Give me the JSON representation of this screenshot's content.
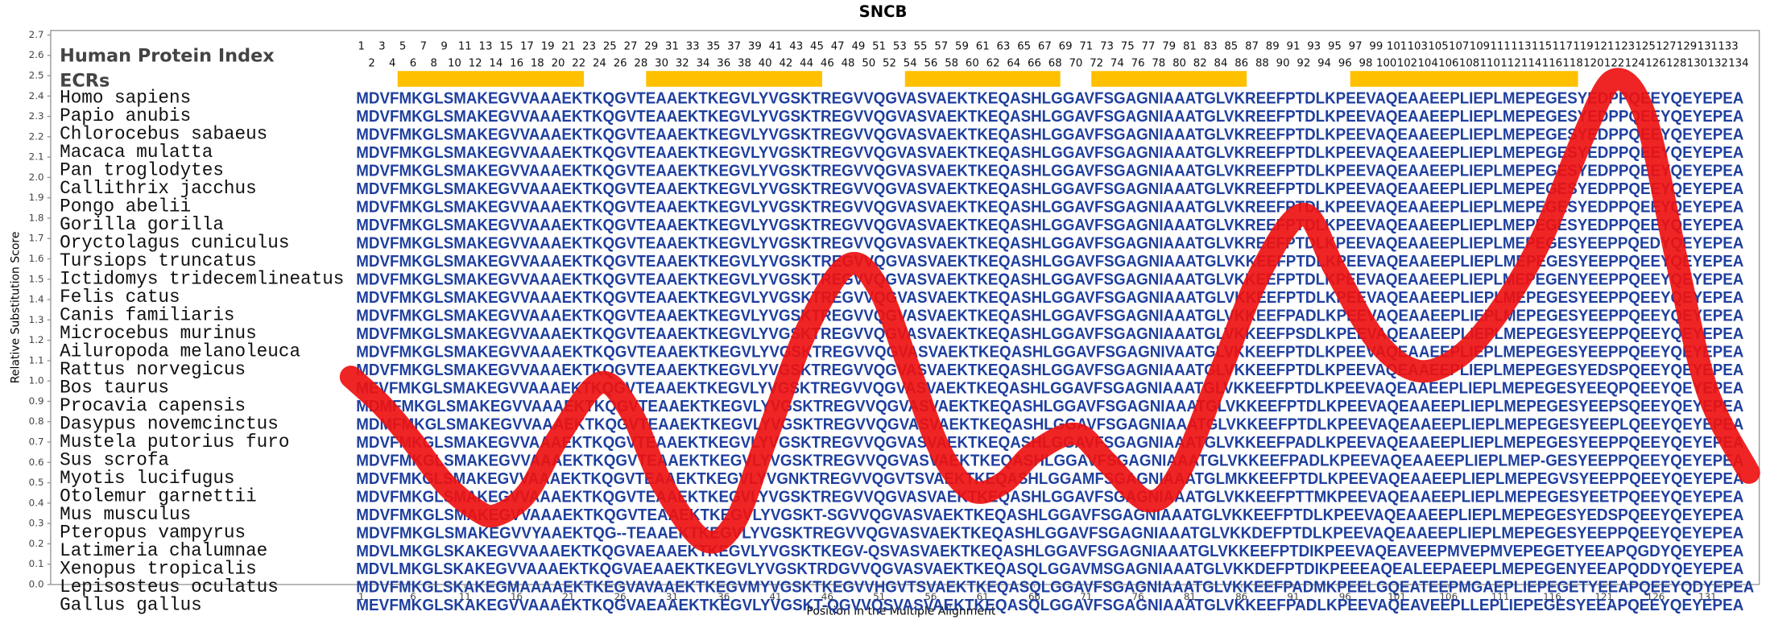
{
  "chart_data": {
    "type": "line",
    "title": "SNCB",
    "y_label": "Relative Substitution Score",
    "x_label": "Position in the Multiple Alignment",
    "header_label": "Human Protein Index",
    "ecr_label": "ECRs",
    "xlim": [
      -29,
      136
    ],
    "ylim": [
      0,
      2.7
    ],
    "xticks": [
      1,
      6,
      11,
      16,
      21,
      26,
      31,
      36,
      41,
      46,
      51,
      56,
      61,
      66,
      71,
      76,
      81,
      86,
      91,
      96,
      101,
      106,
      111,
      116,
      121,
      126,
      131
    ],
    "yticks": [
      {
        "value": 0,
        "label": "0.0"
      },
      0.1,
      0.2,
      0.3,
      0.4,
      0.5,
      0.6,
      0.7,
      0.8,
      0.9,
      {
        "value": 1,
        "label": "1.0"
      },
      1.1,
      1.2,
      1.3,
      1.4,
      1.5,
      1.6,
      1.7,
      1.8,
      1.9,
      {
        "value": 2,
        "label": "2.0"
      },
      2.1,
      2.2,
      2.3,
      2.4,
      2.5,
      2.6,
      2.7
    ],
    "positions": [
      1,
      2,
      3,
      4,
      5,
      6,
      7,
      8,
      9,
      10,
      11,
      12,
      13,
      14,
      15,
      16,
      17,
      18,
      19,
      20,
      21,
      22,
      23,
      24,
      25,
      26,
      27,
      28,
      29,
      30,
      31,
      32,
      33,
      34,
      35,
      36,
      37,
      38,
      39,
      40,
      41,
      42,
      43,
      44,
      45,
      46,
      47,
      48,
      49,
      50,
      51,
      52,
      53,
      54,
      55,
      56,
      57,
      58,
      59,
      60,
      61,
      62,
      63,
      64,
      65,
      66,
      67,
      68,
      69,
      70,
      71,
      72,
      73,
      74,
      75,
      76,
      77,
      78,
      79,
      80,
      81,
      82,
      83,
      84,
      85,
      86,
      87,
      88,
      89,
      90,
      91,
      92,
      93,
      94,
      95,
      96,
      97,
      98,
      99,
      100,
      101,
      102,
      103,
      104,
      105,
      106,
      107,
      108,
      109,
      110,
      111,
      112,
      113,
      114,
      115,
      116,
      117,
      118,
      119,
      120,
      121,
      122,
      123,
      124,
      125,
      126,
      127,
      128,
      129,
      130,
      131,
      132,
      133,
      134
    ],
    "ecrs": [
      [
        5,
        22
      ],
      [
        29,
        45
      ],
      [
        54,
        68
      ],
      [
        72,
        86
      ],
      [
        97,
        118
      ]
    ],
    "ecr_color": "#ffc000",
    "series": [
      {
        "color": "#ee1111",
        "x": [
          0,
          3,
          6,
          9,
          12,
          14,
          17,
          20,
          24,
          27,
          30,
          34,
          37,
          40,
          44,
          48,
          51,
          54,
          57,
          60,
          63,
          66,
          70,
          73,
          77,
          80,
          84,
          88,
          92,
          95,
          99,
          103,
          107,
          111,
          115,
          119,
          122,
          125,
          128,
          131,
          135
        ],
        "values": [
          1.02,
          0.88,
          0.7,
          0.5,
          0.37,
          0.34,
          0.45,
          0.72,
          0.99,
          0.85,
          0.5,
          0.22,
          0.3,
          0.7,
          1.25,
          1.57,
          1.45,
          1.05,
          0.65,
          0.46,
          0.5,
          0.65,
          0.74,
          0.6,
          0.41,
          0.55,
          1.05,
          1.55,
          1.82,
          1.55,
          1.2,
          1.05,
          1.12,
          1.35,
          1.7,
          2.2,
          2.48,
          2.3,
          1.6,
          0.95,
          0.55
        ]
      }
    ],
    "alignment": [
      {
        "name": "Homo sapiens",
        "sequence": "MDVFMKGLSMAKEGVVAAAEKTKQGVTEAAEKTKEGVLYVGSKTREGVVQGVASVAEKTKEQASHLGGAVFSGAGNIAAATGLVKREEFPTDLKPEEVAQEAAEEPLIEPLMEPEGESYEDPPQEEYQEYEPEA"
      },
      {
        "name": "Papio anubis",
        "sequence": "MDVFMKGLSMAKEGVVAAAEKTKQGVTEAAEKTKEGVLYVGSKTREGVVQGVASVAEKTKEQASHLGGAVFSGAGNIAAATGLVKREEFPTDLKPEEVAQEAAEEPLIEPLMEPEGESYEDPPQEEYQEYEPEA"
      },
      {
        "name": "Chlorocebus sabaeus",
        "sequence": "MDVFMKGLSMAKEGVVAAAEKTKQGVTEAAEKTKEGVLYVGSKTREGVVQGVASVAEKTKEQASHLGGAVFSGAGNIAAATGLVKREEFPTDLKPEEVAQEAAEEPLIEPLMEPEGESYEDPPQEEYQEYEPEA"
      },
      {
        "name": "Macaca mulatta",
        "sequence": "MDVFMKGLSMAKEGVVAAAEKTKQGVTEAAEKTKEGVLYVGSKTREGVVQGVASVAEKTKEQASHLGGAVFSGAGNIAAATGLVKREEFPTDLKPEEVAQEAAEEPLIEPLMEPEGESYEDPPQEEYQEYEPEA"
      },
      {
        "name": "Pan troglodytes",
        "sequence": "MDVFMKGLSMAKEGVVAAAEKTKQGVTEAAEKTKEGVLYVGSKTREGVVQGVASVAEKTKEQASHLGGAVFSGAGNIAAATGLVKREEFPTDLKPEEVAQEAAEEPLIEPLMEPEGESYEDPPQEEYQEYEPEA"
      },
      {
        "name": "Callithrix jacchus",
        "sequence": "MDVFMKGLSMAKEGVVAAAEKTKQGVTEAAEKTKEGVLYVGSKTREGVVQGVASVAEKTKEQASHLGGAVFSGAGNIAAATGLVKREEFPTDLKPEEVAQEAAEEPLIEPLMEPEGESYEDPPQEEYQEYEPEA"
      },
      {
        "name": "Pongo abelii",
        "sequence": "MDVFMKGLSMAKEGVVAAAEKTKQGVTEAAEKTKEGVLYVGSKTREGVVQGVASVAEKTKEQASHLGGAVFSGAGNIAAATGLVKREEFPTDLKPEEVAQEAAEEPLIEPLMEPEGESYEDPPQEEYQEYEPEA"
      },
      {
        "name": "Gorilla gorilla",
        "sequence": "MDVFMKGLSMAKEGVVAAAEKTKQGVTEAAEKTKEGVLYVGSKTREGVVQGVASVAEKTKEQASHLGGAVFSGAGNIAAATGLVKREEFPTDLKPEEVAQEAAEEPLIEPLMEPEGESYEDPPQEEYQEYEPEA"
      },
      {
        "name": "Oryctolagus cuniculus",
        "sequence": "MDVFMKGLSMAKEGVVAAAEKTKQGVTEAAEKTKEGVLYVGSKTREGVVQGVASVAEKTKEQASHLGGAVFSGAGNIAAATGLVKREEFPTDLKPEEVAQEAAEEPLIEPLMEPEGESYEEPPQEDYQEYEPEA"
      },
      {
        "name": "Tursiops truncatus",
        "sequence": "MDVFMKGLSMAKEGVVAAAEKTKQGVTEAAEKTKEGVLYVGSKTREGVVQGVASVAEKTKEQASHLGGAVFSGAGNIAAATGLVKKEEFPTDLKPEEVAQEAAEEPLIEPLMEPEGESYEEPPQEEYQEYEPEA"
      },
      {
        "name": "Ictidomys tridecemlineatus",
        "sequence": "MDVFMKGLSMAKEGVVAAAEKTKQGVTEAAEKTKEGVLYVGSKTREGVVQGVASVAEKTKEQASHLGGAVFSGAGNIAAATGLVKKEEFPTDLKPEEVAQEAAEEPLIEPLMEPEGENYEEPPQEEYQEYEPEA"
      },
      {
        "name": "Felis catus",
        "sequence": "MDVFMKGLSMAKEGVVAAAEKTKQGVTEAAEKTKEGVLYVGSKTREGVVQGVASVAEKTKEQASHLGGAVFSGAGNIAAATGLVKKEEFPTDLKPEEVAQEAAEEPLIEPLMEPEGESYEEPPQEEYQEYEPEA"
      },
      {
        "name": "Canis familiaris",
        "sequence": "MDVFMKGLSMAKEGVVAAAEKTKQGVTEAAEKTKEGVLYVGSKTREGVVQGVASVAEKTKEQASHLGGAVFSGAGNIAAATGLVKKEEFPADLKPEEVAQEAAEEPLIEPLMEPEGESYEEPPQEEYQEYEPEA"
      },
      {
        "name": "Microcebus murinus",
        "sequence": "MDVFMKGLSMAKEGVVAAAEKTKQGVTEAAEKTKEGVLYVGSKTREGVVQGVASVAEKTKEQASHLGGAVFSGAGNIAAATGLVKKEEFPSDLKPEEVAQEAAEEPLIEPLMEPEGESYEEPPQEEYQEYEPEA"
      },
      {
        "name": "Ailuropoda melanoleuca",
        "sequence": "MDVFMKGLSMAKEGVVAAAEKTKQGVTEAAEKTKEGVLYVGSKTREGVVQGVASVAEKTKEQASHLGGAVFSGAGNIVAATGLVKKEEFPTDLKPEEVAQEAAEEPLIEPLMEPEGESYEEPPQEEYQEYEPEA"
      },
      {
        "name": "Rattus norvegicus",
        "sequence": "MDVFMKGLSMAKEGVVAAAEKTKQGVTEAAEKTKEGVLYVGSKTREGVVQGVASVAEKTKEQASHLGGAVFSGAGNIAAATGLVKKEEFPTDLKPEEVAQEAAEEPLIEPLMEPEGESYEDSPQEEYQEYEPEA"
      },
      {
        "name": "Bos taurus",
        "sequence": "MEVFMKGLSMAKEGVVAAAEKTKQGVTEAAEKTKEGVLYVGSKTREGVVQGVASVAEKTKEQASHLGGAVFSGAGNIAAATGLVKKEEFPTDLKPEEVAQEAAEEPLIEPLMEPEGESYEEQPQEEYQEYEPEA"
      },
      {
        "name": "Procavia capensis",
        "sequence": "MDMFMKGLSMAKEGVVAAAEKTKQGVTEAAEKTKEGVLYVGSKTREGVVQGVASVAEKTKEQASHLGGAVFSGAGNIAAATGLVKKEEFPTDLKPEEVAQEAAEEPLIEPLMEPEGESYEEPSQEEYQEYEPEA"
      },
      {
        "name": "Dasypus novemcinctus",
        "sequence": "MDMFMKGLSMAKEGVVAAAEKTKQGVTEAAEKTKEGVLYVGSKTREGVVQGVASVAEKTKEQASHLGGAVFSGAGNIAAATGLVKKEEFPTDLKPEEVAQEAAEEPLIEPLMEPEGESYEEPLQEEYQEYEPEA"
      },
      {
        "name": "Mustela putorius furo",
        "sequence": "MDVFMKGLSMAKEGVVAAAEKTKQGVTEAAEKTKEGVLYVGSKTREGVVQGVASVAEKTKEQASHLGGAVFSGAGNIAAATGLVKKEEFPADLKPEEVAQEAAEEPLIEPLMEPEGESYEEPPQEEYQEYEPEA"
      },
      {
        "name": "Sus scrofa",
        "sequence": "MDVFMKGLSMAKEGVVAAAEKTKQGVTEAAEKTKEGVLYVGSKTREGVVQGVASVAEKTKEQASHLGGAVFSGAGNIAAATGLVKKEEFPADLKPEEVAQEAAEEPLIEPLMEP-GESYEEPPQEEYQEYEPEA"
      },
      {
        "name": "Myotis lucifugus",
        "sequence": "MDVFMKGLSMAKEGVVAAAEKTKQGVTEAAEKTKEGVLYVGNKTREGVVQGVTSVAEKTKEQASHLGGAMFSGAGNIAAATGLMKKEEFPTDLKPEEVAQEAAEEPLIEPLMEPEGVSYEEPPQEEYQEYEPEA"
      },
      {
        "name": "Otolemur garnettii",
        "sequence": "MDVFMKGLSMAKEGVVAAAEKTKQGVTEAAEKTKEGVLYVGSKTREGVVQGVASVAEKTKEQASHLGGAVFSGAGNIAAATGLVKKEEFPTTMKPEEVAQEAAEEPLIEPLMEPEGESYEETPQEEYQEYEPEA"
      },
      {
        "name": "Mus musculus",
        "sequence": "MDVFMKGLSMAKEGVVAAAEKTKQGVTEAAEKTKEGVLYVGSKT-SGVVQGVASVAEKTKEQASHLGGAVFSGAGNIAAATGLVKKEEFPTDLKPEEVAQEAAEEPLIEPLMEPEGESYEDSPQEEYQEYEPEA"
      },
      {
        "name": "Pteropus vampyrus",
        "sequence": "MDVFMKGLSMAKEGVVYAAEKTQG--TEAAEKTKEGVLYVGSKTREGVVQGVASVAEKTKEQASHLGGAVFSGAGNIAAATGLVKKDEFPTDLKPEEVAQEAAEEPLIEPLMEPEGESYEEPPQEEYQEYEPEA"
      },
      {
        "name": "Latimeria chalumnae",
        "sequence": "MDVLMKGLSKAKEGVVAAAEKTKQGVAEAAEKTKEGVLYVGSKTKEGV-QSVASVAEKTKEQASHLGGAVFSGAGNIAAATGLVKKEEFPTDIKPEEVAQEAVEEPMVEPMVEPEGETYEEAPQGDYQEYEPEA"
      },
      {
        "name": "Xenopus tropicalis",
        "sequence": "MDVLMKGLSKAKEGVVAAAEKTKQGVAEAAEKTKEGVLYVGSKTRDGVVQGVASVAEKTKEQASQLGGAVMSGAGNIAAATGLVKKDEFPTDIKPEEEAQEALEEPAEEPLMEPEGENYEEAPQDDYQEYEPEA"
      },
      {
        "name": "Lepisosteus oculatus",
        "sequence": "MDVFMKGLSKAKEGMAAAAEKTKEGVAVAAEKTKEGVMYVGSKTKEGVVHGVTSVAEKTKEQASQLGGAVFSGAGNIAAATGLVKKEEFPADMKPEELGQEATEEPMGAEPLIEPEGETYEEAPQEEYQDYEPEA"
      },
      {
        "name": "Gallus gallus",
        "sequence": "MEVFMKGLSKAKEGVVAAAEKTKQGVAEAAEKTKEGVLYVGSKT-QGVVQSVASVAEKTKEQASQLGGAVFSGAGNIAAATGLVKKEEFPADLKPEEVAQEAVEEPLLEPLIEPEGESYEEAPQEEYQEYEPEA"
      }
    ]
  }
}
